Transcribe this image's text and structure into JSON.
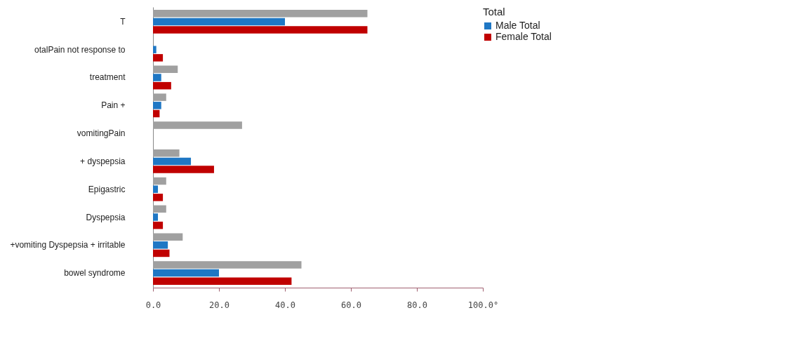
{
  "chart_data": {
    "type": "bar",
    "orientation": "horizontal",
    "legend_title": "Total",
    "legend": "right",
    "categories": [
      "T",
      "otalPain not response to",
      "treatment",
      "Pain +",
      "vomitingPain",
      "+ dyspepsia",
      "Epigastric",
      "Dyspepsia",
      "+vomiting Dyspepsia  + irritable",
      "bowel  syndrome"
    ],
    "series": [
      {
        "color": "#a0a0a0",
        "values": [
          65,
          null,
          7.5,
          4,
          27,
          8,
          4,
          4,
          9,
          45
        ]
      },
      {
        "name": "Male Total",
        "color": "#1f77c4",
        "values": [
          40,
          1,
          2.5,
          2.5,
          null,
          11.5,
          1.5,
          1.5,
          4.5,
          20
        ]
      },
      {
        "name": "Female Total",
        "color": "#c00000",
        "values": [
          65,
          3,
          5.5,
          2,
          null,
          18.5,
          3,
          3,
          5,
          42
        ]
      }
    ],
    "xlim": [
      0,
      100
    ],
    "xticks": [
      {
        "value": 0,
        "label": "0.0"
      },
      {
        "value": 20,
        "label": "20.0"
      },
      {
        "value": 40,
        "label": "40.0"
      },
      {
        "value": 60,
        "label": "60.0"
      },
      {
        "value": 80,
        "label": "80.0"
      },
      {
        "value": 100,
        "label": "100.0°"
      }
    ]
  }
}
